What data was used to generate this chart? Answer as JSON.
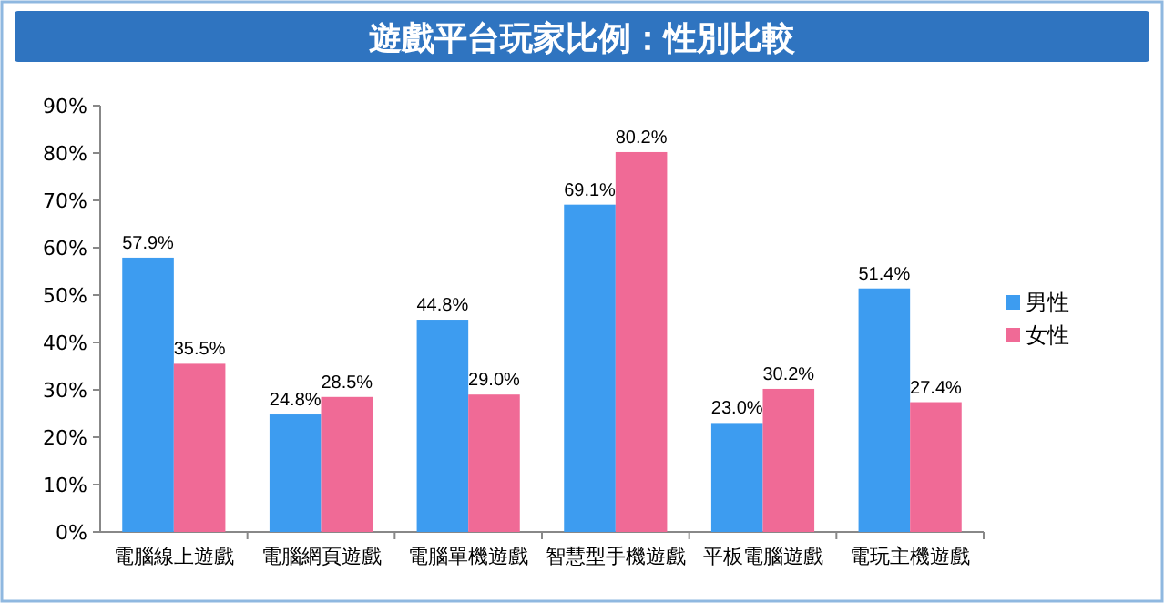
{
  "chart_data": {
    "type": "bar",
    "title": "遊戲平台玩家比例：性別比較",
    "categories": [
      "電腦線上遊戲",
      "電腦網頁遊戲",
      "電腦單機遊戲",
      "智慧型手機遊戲",
      "平板電腦遊戲",
      "電玩主機遊戲"
    ],
    "series": [
      {
        "name": "男性",
        "color": "#3d9cf0",
        "values": [
          57.9,
          24.8,
          44.8,
          69.1,
          23.0,
          51.4
        ],
        "value_labels": [
          "57.9%",
          "24.8%",
          "44.8%",
          "69.1%",
          "23.0%",
          "51.4%"
        ]
      },
      {
        "name": "女性",
        "color": "#f06a96",
        "values": [
          35.5,
          28.5,
          29.0,
          80.2,
          30.2,
          27.4
        ],
        "value_labels": [
          "35.5%",
          "28.5%",
          "29.0%",
          "80.2%",
          "30.2%",
          "27.4%"
        ]
      }
    ],
    "ylim": [
      0,
      90
    ],
    "yticks": [
      {
        "value": 0,
        "label": "0%"
      },
      {
        "value": 10,
        "label": "10%"
      },
      {
        "value": 20,
        "label": "20%"
      },
      {
        "value": 30,
        "label": "30%"
      },
      {
        "value": 40,
        "label": "40%"
      },
      {
        "value": 50,
        "label": "50%"
      },
      {
        "value": 60,
        "label": "60%"
      },
      {
        "value": 70,
        "label": "70%"
      },
      {
        "value": 80,
        "label": "80%"
      },
      {
        "value": 90,
        "label": "90%"
      }
    ],
    "legend": "right"
  }
}
